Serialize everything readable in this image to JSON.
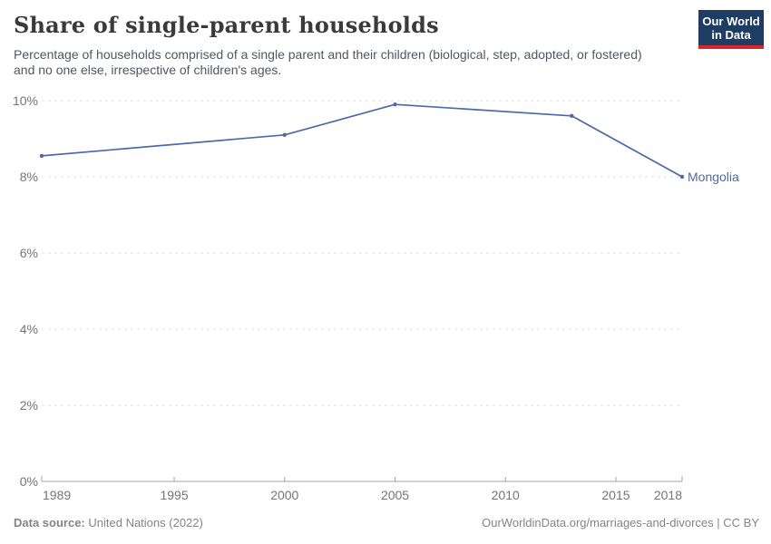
{
  "header": {
    "title": "Share of single-parent households",
    "subtitle": "Percentage of households comprised of a single parent and their children (biological, step, adopted, or fostered) and no one else, irrespective of children's ages.",
    "logo": {
      "line1": "Our World",
      "line2": "in Data"
    }
  },
  "chart_data": {
    "type": "line",
    "title": "Share of single-parent households",
    "subtitle": "Percentage of households comprised of a single parent and their children (biological, step, adopted, or fostered) and no one else, irrespective of children's ages.",
    "series": [
      {
        "name": "Mongolia",
        "color": "#4c6ba6",
        "x": [
          1989,
          2000,
          2005,
          2013,
          2018
        ],
        "values": [
          8.55,
          9.1,
          9.9,
          9.6,
          8.0
        ]
      }
    ],
    "x_ticks": [
      1989,
      1995,
      2000,
      2005,
      2010,
      2015,
      2018
    ],
    "x_tick_labels": [
      "1989",
      "1995",
      "2000",
      "2005",
      "2010",
      "2015",
      "2018"
    ],
    "y_ticks": [
      0,
      2,
      4,
      6,
      8,
      10
    ],
    "y_tick_labels": [
      "0%",
      "2%",
      "4%",
      "6%",
      "8%",
      "10%"
    ],
    "xlim": [
      1989,
      2018
    ],
    "ylim": [
      0,
      10
    ],
    "xlabel": "",
    "ylabel": "",
    "grid": "horizontal-dashed",
    "legend_position": "end-of-line-label",
    "end_label": "Mongolia"
  },
  "footer": {
    "source_label": "Data source:",
    "source_value": "United Nations (2022)",
    "credit": "OurWorldinData.org/marriages-and-divorces | CC BY"
  },
  "colors": {
    "line": "#4c6ba6",
    "grid": "#dcdcdc",
    "axis": "#a5a5a5",
    "tick_text": "#757575",
    "logo_bg": "#1d3d63",
    "logo_stripe": "#d8262c"
  }
}
